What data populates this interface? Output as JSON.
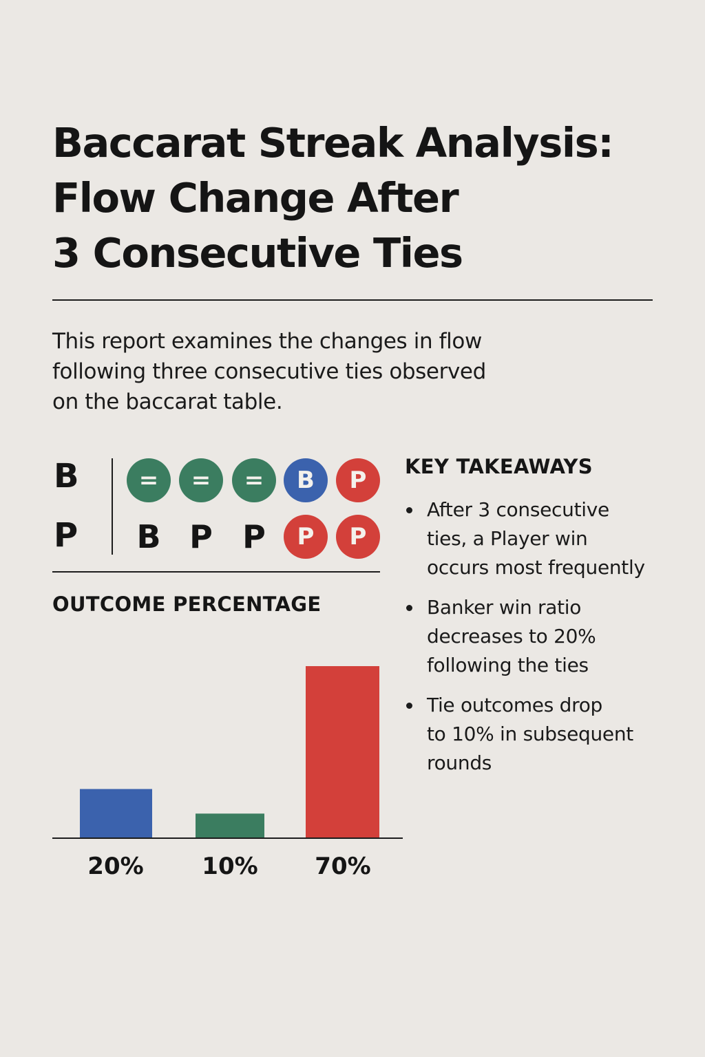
{
  "colors": {
    "background": "#ebe8e4",
    "banker": "#3b62ad",
    "tie": "#3b7d60",
    "player": "#d3403a",
    "ink": "#151515"
  },
  "title_lines": [
    "Baccarat Streak Analysis:",
    "Flow Change After",
    "3 Consecutive Ties"
  ],
  "intro_lines": [
    "This report examines the changes in flow",
    "following three consecutive ties observed",
    "on the baccarat table."
  ],
  "streak_grid": {
    "row_labels": [
      "B",
      "P"
    ],
    "rows": [
      [
        {
          "kind": "tie",
          "text": "="
        },
        {
          "kind": "tie",
          "text": "="
        },
        {
          "kind": "tie",
          "text": "="
        },
        {
          "kind": "banker",
          "text": "B"
        },
        {
          "kind": "player",
          "text": "P"
        }
      ],
      [
        {
          "kind": "letter",
          "text": "B"
        },
        {
          "kind": "letter",
          "text": "P"
        },
        {
          "kind": "letter",
          "text": "P"
        },
        {
          "kind": "player",
          "text": "P"
        },
        {
          "kind": "player",
          "text": "P"
        }
      ]
    ]
  },
  "key_takeaways": {
    "heading": "KEY TAKEAWAYS",
    "items": [
      {
        "lines": [
          "After 3 consecutive",
          "ties, a Player win",
          "occurs most frequently"
        ]
      },
      {
        "lines": [
          "Banker win ratio",
          "decreases to 20%",
          "following the ties"
        ]
      },
      {
        "lines": [
          "Tie outcomes drop",
          "to 10% in subsequent",
          "rounds"
        ]
      }
    ]
  },
  "chart_data": {
    "type": "bar",
    "title": "OUTCOME PERCENTAGE",
    "unit": "%",
    "values": [
      20,
      10,
      70
    ],
    "labels": [
      "20%",
      "10%",
      "70%"
    ],
    "bar_colors": [
      "#3b62ad",
      "#3b7d60",
      "#d3403a"
    ],
    "ylim": [
      0,
      70
    ],
    "grid": false,
    "legend": "none"
  }
}
